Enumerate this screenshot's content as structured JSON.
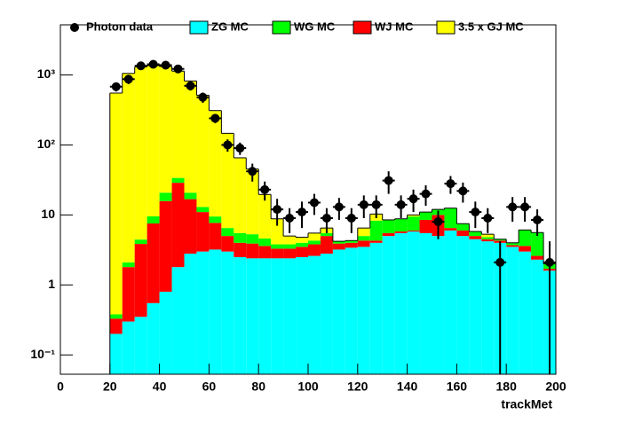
{
  "chart_data": {
    "type": "stacked-histogram",
    "x_label": "trackMet",
    "bins": [
      20,
      25,
      30,
      35,
      40,
      45,
      50,
      55,
      60,
      65,
      70,
      75,
      80,
      85,
      90,
      95,
      100,
      105,
      110,
      115,
      120,
      125,
      130,
      135,
      140,
      145,
      150,
      155,
      160,
      165,
      170,
      175,
      180,
      185,
      190,
      195,
      200
    ],
    "xlim": [
      0,
      200
    ],
    "xticks": [
      0,
      20,
      40,
      60,
      80,
      100,
      120,
      140,
      160,
      180,
      200
    ],
    "ylim": [
      0.053,
      5200
    ],
    "log_y": true,
    "yticks": [
      {
        "value": 0.1,
        "label": "10⁻¹"
      },
      1,
      10,
      {
        "value": 100,
        "label": "10²"
      },
      {
        "value": 1000,
        "label": "10³"
      }
    ],
    "series": [
      {
        "name": "ZG MC",
        "color": "#00ffff",
        "values": [
          0.2,
          0.3,
          0.35,
          0.55,
          0.8,
          1.8,
          2.8,
          3.0,
          3.2,
          3.0,
          2.5,
          2.4,
          2.4,
          2.4,
          2.4,
          2.5,
          2.6,
          2.8,
          3.2,
          3.4,
          3.5,
          4.0,
          5.0,
          5.5,
          5.8,
          5.5,
          5.0,
          6.0,
          5.0,
          4.5,
          4.2,
          4.0,
          3.5,
          3.0,
          2.3,
          1.6
        ]
      },
      {
        "name": "WG MC",
        "color": "#00ff00",
        "values": [
          0.05,
          0.3,
          0.6,
          2,
          5,
          5,
          4,
          2,
          1.8,
          1.5,
          1.5,
          1.4,
          1,
          0.5,
          0.5,
          0.5,
          0.5,
          0.5,
          0.3,
          0.3,
          0.7,
          4,
          3,
          3,
          3.5,
          2.5,
          2,
          6,
          1.5,
          0.8,
          0.3,
          0.2,
          0.3,
          2.5,
          3,
          0.3
        ]
      },
      {
        "name": "WJ MC",
        "color": "#ff0000",
        "values": [
          0.13,
          1.5,
          3.5,
          7,
          15,
          27,
          14,
          8,
          4.5,
          2,
          1.5,
          1.5,
          1.2,
          0.9,
          0.9,
          1.0,
          1.2,
          2.2,
          0.7,
          0.6,
          0.8,
          0.3,
          0.5,
          0.3,
          0.2,
          3,
          5,
          0.5,
          1,
          0.5,
          0.3,
          0.3,
          0.2,
          0.6,
          0.3,
          0.1
        ]
      },
      {
        "name": "3.5 x GJ MC",
        "color": "#ffff00",
        "values": [
          550,
          1050,
          1300,
          1350,
          1300,
          1100,
          800,
          500,
          300,
          140,
          60,
          40,
          15,
          5,
          1.2,
          0.8,
          1.2,
          1,
          0,
          0,
          1.5,
          2,
          0,
          0,
          0.5,
          0,
          0,
          0,
          0,
          0,
          0.5,
          0,
          0,
          0,
          0,
          0
        ]
      }
    ],
    "data_points": {
      "name": "Photon data",
      "color": "#000000",
      "values": [
        680,
        870,
        1350,
        1420,
        1380,
        1220,
        700,
        480,
        240,
        100,
        90,
        42,
        23,
        12,
        9,
        11,
        15,
        9,
        13,
        9,
        14,
        14,
        31,
        14,
        17,
        20,
        8,
        28,
        22,
        11,
        9,
        2.1,
        13,
        13,
        8.5,
        2.1
      ],
      "errors": [
        100,
        130,
        150,
        150,
        150,
        140,
        100,
        80,
        35,
        20,
        18,
        12,
        7,
        5,
        3.5,
        4.5,
        5,
        3.5,
        4.5,
        3.5,
        5,
        5,
        11,
        5,
        6,
        6.5,
        3.5,
        8,
        7,
        4.5,
        3.5,
        2.1,
        5,
        5,
        3.5,
        2.1
      ]
    }
  }
}
